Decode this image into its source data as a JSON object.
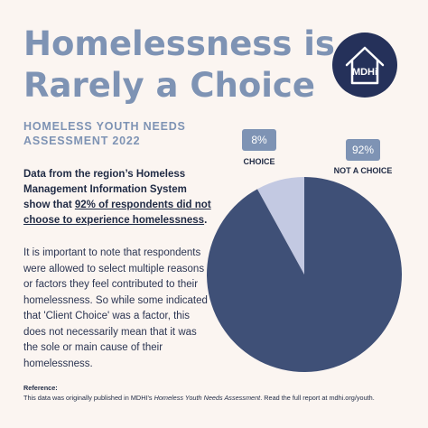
{
  "header": {
    "title_line1": "Homelessness is",
    "title_line2": "Rarely a Choice",
    "logo_text": "MDHi",
    "subtitle_line1": "HOMELESS YOUTH NEEDS",
    "subtitle_line2": "ASSESSMENT 2022"
  },
  "lead": {
    "part1": "Data from the region’s Homeless Management Information System show that ",
    "highlight": "92% of respondents did not choose to experience homelessness",
    "part2": "."
  },
  "body_text": "It is important to note that respondents were allowed to select multiple reasons or factors they feel contributed to their homelessness. So while some indicated that 'Client Choice' was a factor, this does not necessarily mean that it was the sole or main cause of their homelessness.",
  "reference": {
    "heading": "Reference:",
    "text_before": "This data was originally published in MDHI's ",
    "text_italic": "Homeless Youth Needs Assessment",
    "text_after": ". Read the full report at mdhi.org/youth."
  },
  "colors": {
    "background": "#fbf5f1",
    "title": "#7e93b4",
    "navy": "#25315a",
    "slice_main": "#3f5077",
    "slice_minor": "#c3c9e2",
    "badge": "#7e93b4"
  },
  "chart_data": {
    "type": "pie",
    "slices": [
      {
        "label": "CHOICE",
        "value": 8,
        "display": "8%",
        "color": "#c3c9e2"
      },
      {
        "label": "NOT A CHOICE",
        "value": 92,
        "display": "92%",
        "color": "#3f5077"
      }
    ]
  }
}
